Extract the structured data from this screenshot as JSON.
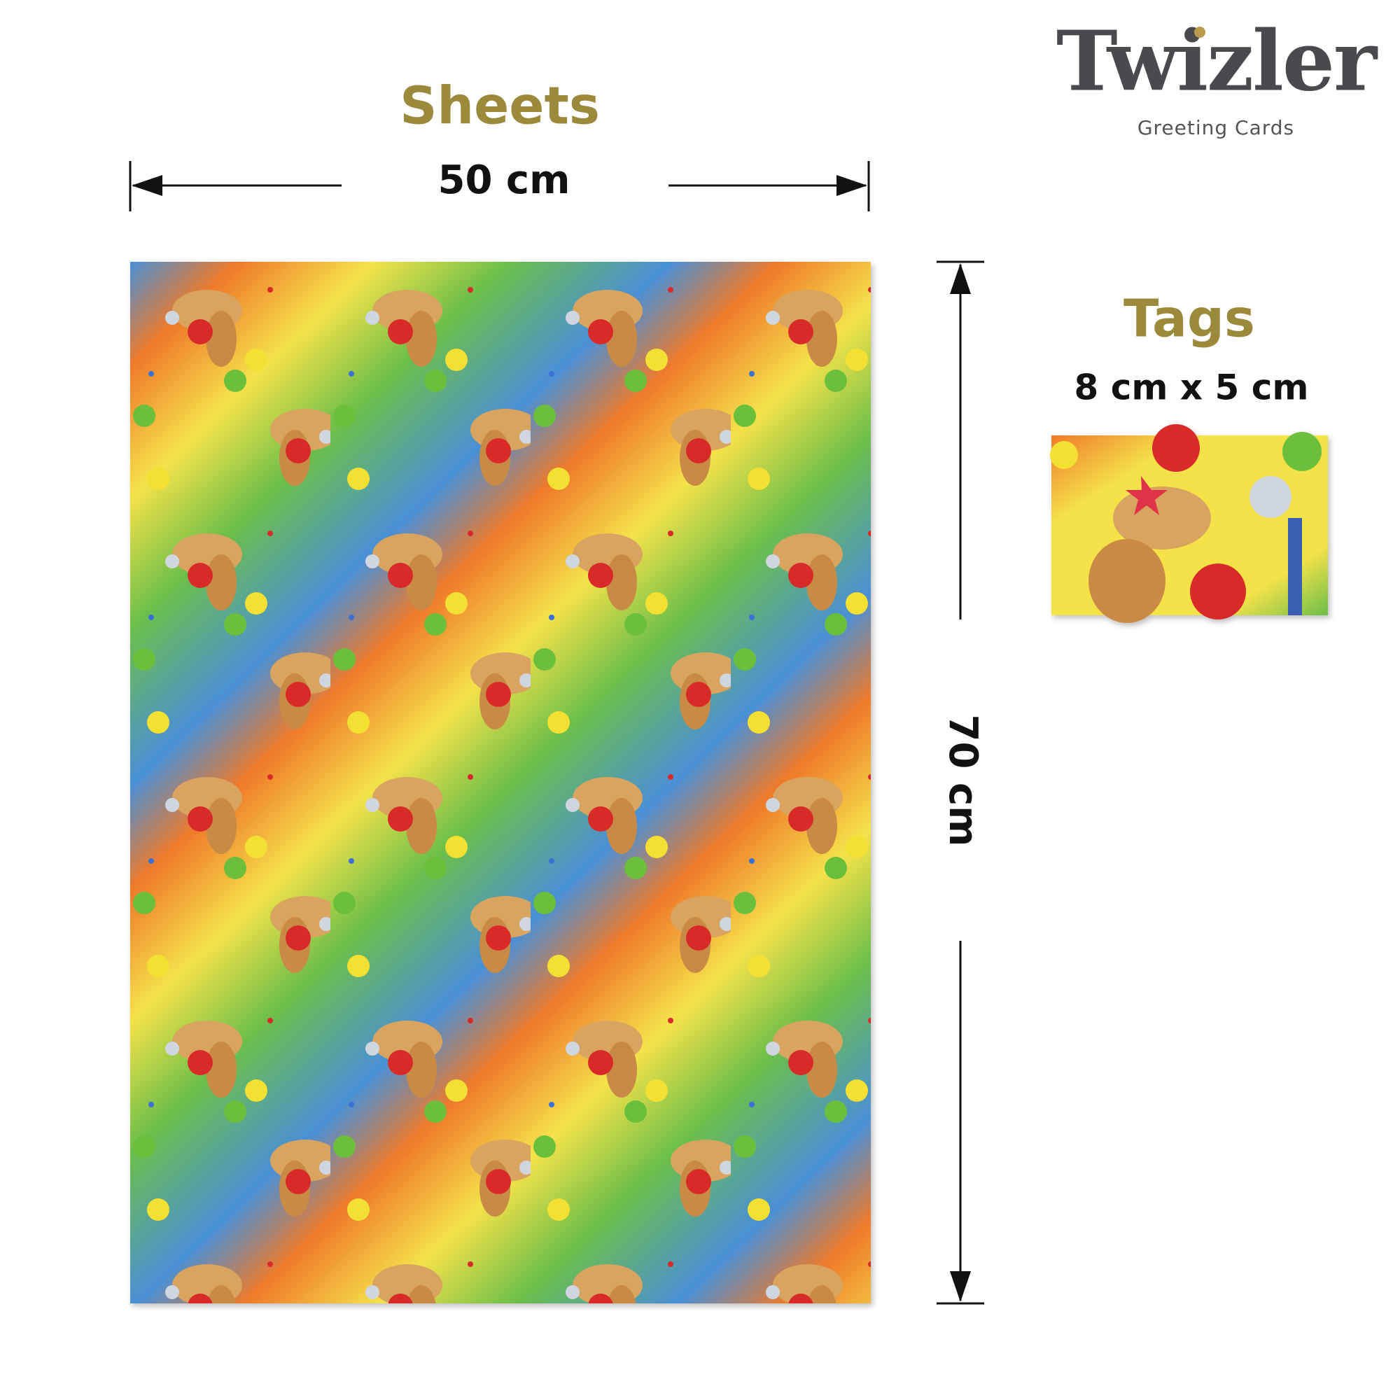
{
  "brand": {
    "name": "Twizler",
    "tagline": "Greeting Cards"
  },
  "sheets": {
    "title": "Sheets",
    "width": "50 cm",
    "height": "70 cm"
  },
  "tags": {
    "title": "Tags",
    "size": "8 cm x 5 cm"
  }
}
